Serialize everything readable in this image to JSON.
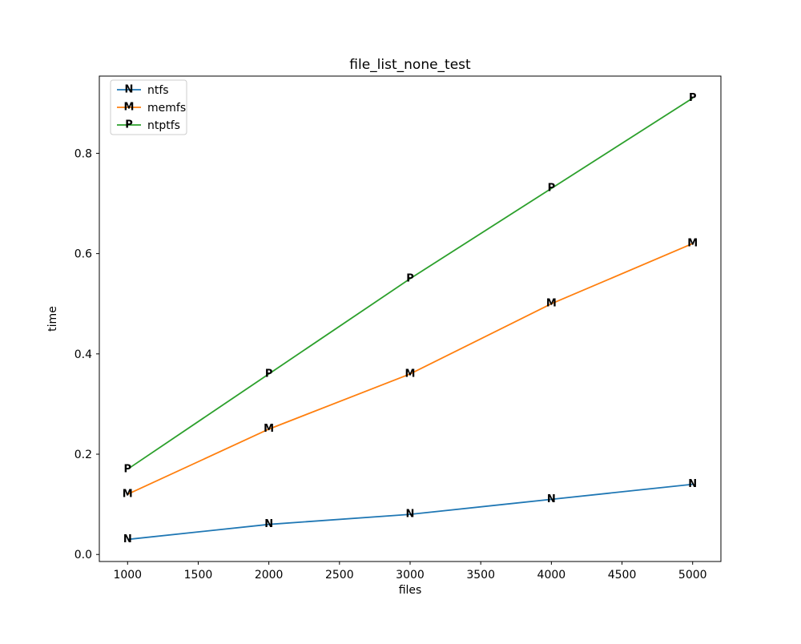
{
  "chart_data": {
    "type": "line",
    "title": "file_list_none_test",
    "xlabel": "files",
    "ylabel": "time",
    "x": [
      1000,
      2000,
      3000,
      4000,
      5000
    ],
    "series": [
      {
        "name": "ntfs",
        "marker": "N",
        "color": "#1f77b4",
        "values": [
          0.03,
          0.06,
          0.08,
          0.11,
          0.14
        ]
      },
      {
        "name": "memfs",
        "marker": "M",
        "color": "#ff7f0e",
        "values": [
          0.12,
          0.25,
          0.36,
          0.5,
          0.62
        ]
      },
      {
        "name": "ntptfs",
        "marker": "P",
        "color": "#2ca02c",
        "values": [
          0.17,
          0.36,
          0.55,
          0.73,
          0.91
        ]
      }
    ],
    "xticks": [
      1000,
      1500,
      2000,
      2500,
      3000,
      3500,
      4000,
      4500,
      5000
    ],
    "yticks": [
      0.0,
      0.2,
      0.4,
      0.6,
      0.8
    ],
    "xlim": [
      800,
      5200
    ],
    "ylim": [
      -0.014,
      0.954
    ],
    "legend_position": "upper left",
    "grid": false,
    "spine_color": "#000000",
    "legend_edge_color": "#cccccc"
  }
}
